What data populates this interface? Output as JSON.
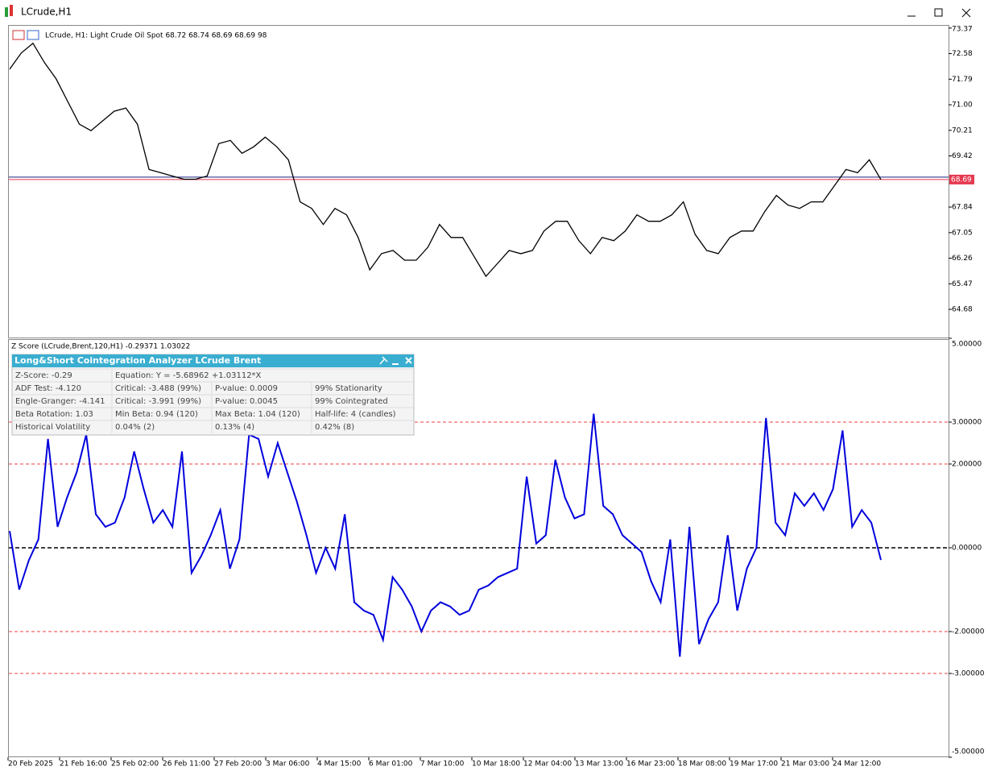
{
  "window": {
    "title": "LCrude,H1"
  },
  "price_chart": {
    "info": "LCrude, H1:  Light Crude Oil Spot  68.72 68.74 68.69 68.69  98",
    "ylim": [
      63.81,
      73.44
    ],
    "yticks": [
      73.37,
      72.58,
      71.79,
      {
        "value": 71,
        "label": "71.00"
      },
      70.21,
      69.42,
      67.84,
      67.05,
      66.26,
      65.47,
      64.68
    ],
    "current_price": 68.69,
    "color": "#000000",
    "closes": [
      72.1,
      72.6,
      72.9,
      72.3,
      71.8,
      71.1,
      70.4,
      70.2,
      70.5,
      70.8,
      70.9,
      70.4,
      69.0,
      68.9,
      68.8,
      68.7,
      68.7,
      68.8,
      69.8,
      69.9,
      69.5,
      69.7,
      70.0,
      69.7,
      69.3,
      68.0,
      67.8,
      67.3,
      67.8,
      67.6,
      66.9,
      65.9,
      66.4,
      66.5,
      66.2,
      66.2,
      66.6,
      67.3,
      66.9,
      66.9,
      66.3,
      65.7,
      66.1,
      66.5,
      66.4,
      66.5,
      67.1,
      67.4,
      67.4,
      66.8,
      66.4,
      66.9,
      66.8,
      67.1,
      67.6,
      67.4,
      67.4,
      67.6,
      68.0,
      67.0,
      66.5,
      66.4,
      66.9,
      67.1,
      67.1,
      67.7,
      68.2,
      67.9,
      67.8,
      68.0,
      68.0,
      68.5,
      69.0,
      68.9,
      69.3,
      68.69
    ]
  },
  "zscore_chart": {
    "info": "Z Score (LCrude,Brent,120,H1) -0.29371 1.03022",
    "ylim": [
      -5,
      5
    ],
    "yticks": [
      {
        "value": 5,
        "label": "5.00000"
      },
      {
        "value": 3,
        "label": "3.00000"
      },
      {
        "value": 2,
        "label": "2.00000"
      },
      {
        "value": 0,
        "label": "0.00000"
      },
      {
        "value": -2,
        "label": "-2.00000"
      },
      {
        "value": -3,
        "label": "-3.00000"
      },
      {
        "value": -5,
        "label": "-5.00000"
      }
    ],
    "color": "#0000dd",
    "values": [
      0.4,
      -1.0,
      -0.3,
      0.2,
      2.6,
      0.5,
      1.2,
      1.8,
      2.7,
      0.8,
      0.5,
      0.6,
      1.2,
      2.3,
      1.4,
      0.6,
      0.9,
      0.5,
      2.3,
      -0.6,
      -0.2,
      0.3,
      0.9,
      -0.5,
      0.2,
      2.7,
      2.6,
      1.7,
      2.5,
      1.8,
      1.1,
      0.3,
      -0.6,
      0.0,
      -0.5,
      0.8,
      -1.3,
      -1.5,
      -1.6,
      -2.2,
      -0.7,
      -1.0,
      -1.4,
      -2.0,
      -1.5,
      -1.3,
      -1.4,
      -1.6,
      -1.5,
      -1.0,
      -0.9,
      -0.7,
      -0.6,
      -0.5,
      1.7,
      0.1,
      0.3,
      2.1,
      1.2,
      0.7,
      0.8,
      3.2,
      1.0,
      0.8,
      0.3,
      0.1,
      -0.1,
      -0.8,
      -1.3,
      0.2,
      -2.6,
      0.5,
      -2.3,
      -1.7,
      -1.3,
      0.3,
      -1.5,
      -0.5,
      0.0,
      3.1,
      0.6,
      0.3,
      1.3,
      1.0,
      1.3,
      0.9,
      1.4,
      2.8,
      0.5,
      0.9,
      0.6,
      -0.29
    ]
  },
  "panel": {
    "title": "Long&Short Cointegration Analyzer LCrude Brent",
    "rows": [
      [
        "Z-Score: -0.29",
        "Equation: Y = -5.68962 +1.03112*X"
      ],
      [
        "ADF Test: -4.120",
        "Critical: -3.488 (99%)",
        "P-value: 0.0009",
        "99% Stationarity"
      ],
      [
        "Engle-Granger: -4.141",
        "Critical: -3.991 (99%)",
        "P-value: 0.0045",
        "99% Cointegrated"
      ],
      [
        "Beta Rotation: 1.03",
        "Min Beta: 0.94 (120)",
        "Max Beta: 1.04 (120)",
        "Half-life: 4 (candles)"
      ],
      [
        "Historical Volatility",
        "0.04% (2)",
        "0.13% (4)",
        "0.42% (8)"
      ]
    ]
  },
  "time_labels": [
    "20 Feb 2025",
    "21 Feb 16:00",
    "25 Feb 02:00",
    "26 Feb 11:00",
    "27 Feb 20:00",
    "3 Mar 06:00",
    "4 Mar 15:00",
    "6 Mar 01:00",
    "7 Mar 10:00",
    "10 Mar 18:00",
    "12 Mar 04:00",
    "13 Mar 13:00",
    "16 Mar 23:00",
    "18 Mar 08:00",
    "19 Mar 17:00",
    "21 Mar 03:00",
    "24 Mar 12:00"
  ]
}
